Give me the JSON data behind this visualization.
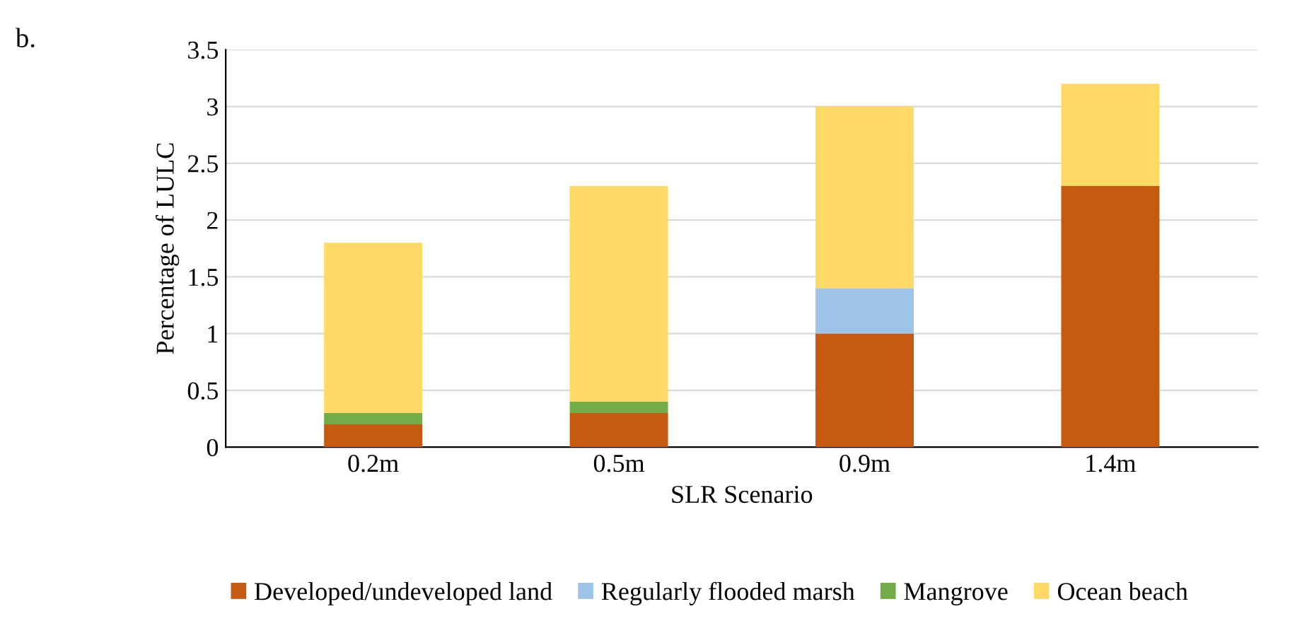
{
  "chart_data": {
    "type": "bar",
    "stacked": true,
    "xlabel": "SLR Scenario",
    "ylabel": "Percentage of LULC",
    "annotations": [
      "b."
    ],
    "categories": [
      "0.2m",
      "0.5m",
      "0.9m",
      "1.4m"
    ],
    "series": [
      {
        "name": "Developed/undeveloped land",
        "color": "#c55a11",
        "values": [
          0.2,
          0.3,
          1,
          2.3
        ]
      },
      {
        "name": "Regularly flooded marsh",
        "color": "#9dc3e6",
        "values": [
          0,
          0,
          0.4,
          0
        ]
      },
      {
        "name": "Mangrove",
        "color": "#70ad47",
        "values": [
          0.1,
          0.1,
          0,
          0
        ]
      },
      {
        "name": "Ocean beach",
        "color": "#ffd966",
        "values": [
          1.5,
          1.9,
          1.6,
          0.9
        ]
      }
    ],
    "ylim": [
      0,
      3.5
    ],
    "yticks": [
      0,
      0.5,
      1,
      1.5,
      2,
      2.5,
      3,
      3.5
    ],
    "grid": "y",
    "legend": "bottom"
  }
}
